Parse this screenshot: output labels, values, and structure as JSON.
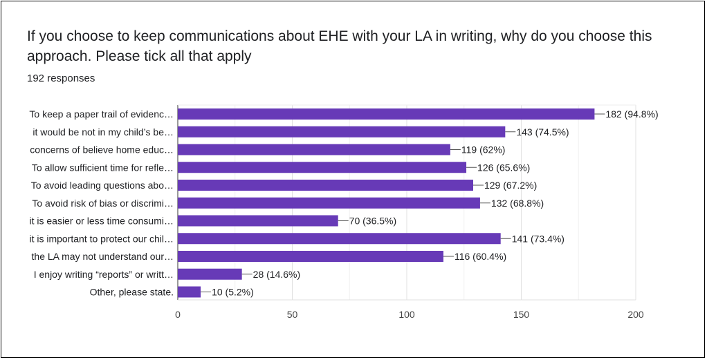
{
  "header": {
    "title": "If you choose to keep communications about EHE with your LA in writing, why do you choose this approach.  Please tick all that apply",
    "responses": "192 responses"
  },
  "colors": {
    "bar": "#673ab7",
    "grid": "#e0e0e0",
    "axis": "#333333"
  },
  "chart_data": {
    "type": "bar",
    "orientation": "horizontal",
    "title": "If you choose to keep communications about EHE with your LA in writing, why do you choose this approach.  Please tick all that apply",
    "categories": [
      "To keep a paper trail of evidenc…",
      "it would be not in my child’s be…",
      "concerns of believe home educ…",
      "To allow sufficient time for refle…",
      "To avoid leading questions abo…",
      "To avoid risk of bias or discrimi…",
      "it is easier or less time consumi…",
      "it is important to protect our chil…",
      "the LA may not understand our…",
      "I enjoy writing “reports” or writt…",
      "Other, please state."
    ],
    "values": [
      182,
      143,
      119,
      126,
      129,
      132,
      70,
      141,
      116,
      28,
      10
    ],
    "value_labels": [
      "182 (94.8%)",
      "143 (74.5%)",
      "119 (62%)",
      "126 (65.6%)",
      "129 (67.2%)",
      "132 (68.8%)",
      "70 (36.5%)",
      "141 (73.4%)",
      "116 (60.4%)",
      "28 (14.6%)",
      "10 (5.2%)"
    ],
    "xlim": [
      0,
      200
    ],
    "xticks": [
      0,
      50,
      100,
      150,
      200
    ],
    "grid": true
  }
}
